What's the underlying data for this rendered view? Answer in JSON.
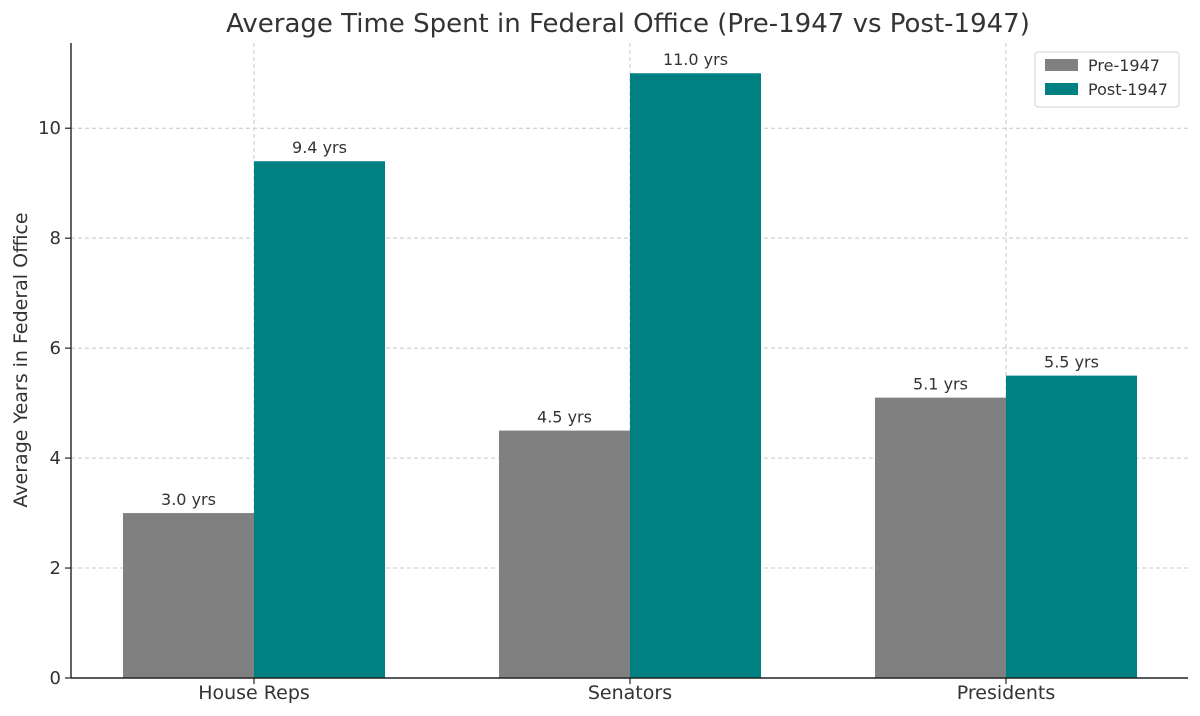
{
  "chart_data": {
    "type": "bar",
    "title": "Average Time Spent in Federal Office (Pre-1947 vs Post-1947)",
    "xlabel": "",
    "ylabel": "Average Years in Federal Office",
    "categories": [
      "House Reps",
      "Senators",
      "Presidents"
    ],
    "series": [
      {
        "name": "Pre-1947",
        "values": [
          3.0,
          4.5,
          5.1
        ],
        "labels": [
          "3.0 yrs",
          "4.5 yrs",
          "5.1 yrs"
        ],
        "color": "#808080"
      },
      {
        "name": "Post-1947",
        "values": [
          9.4,
          11.0,
          5.5
        ],
        "labels": [
          "9.4 yrs",
          "11.0 yrs",
          "5.5 yrs"
        ],
        "color": "#008080"
      }
    ],
    "ylim": [
      0,
      11.55
    ],
    "yticks": [
      0,
      2,
      4,
      6,
      8,
      10
    ],
    "grid": true,
    "legend_position": "top-right"
  }
}
